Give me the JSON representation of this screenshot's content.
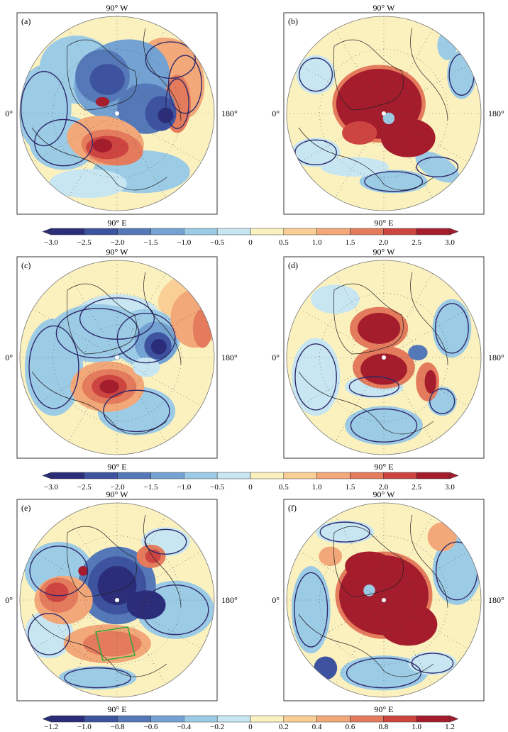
{
  "colors": {
    "palette": [
      "#2b2d7a",
      "#3d53a0",
      "#5579b8",
      "#73a2d3",
      "#9ccbe6",
      "#c7e6f2",
      "#fbf1bf",
      "#f9cf95",
      "#f2a879",
      "#e47b5c",
      "#cd4440",
      "#a51c2c"
    ],
    "frame": "#333333",
    "coast": "#222222",
    "contour": "#2d2a6a",
    "pole": "#ffffff",
    "region_box": "#3aa53a"
  },
  "labels": {
    "top": "90° W",
    "bottom": "90° E",
    "left": "0°",
    "right": "180°"
  },
  "panels": [
    {
      "tag": "(a)",
      "pattern": "a"
    },
    {
      "tag": "(b)",
      "pattern": "b"
    },
    {
      "tag": "(c)",
      "pattern": "c"
    },
    {
      "tag": "(d)",
      "pattern": "d"
    },
    {
      "tag": "(e)",
      "pattern": "e"
    },
    {
      "tag": "(f)",
      "pattern": "f"
    }
  ],
  "colorbars": [
    {
      "ticks": [
        "−3.0",
        "−2.5",
        "−2.0",
        "−1.5",
        "−1.0",
        "−0.5",
        "0",
        "0.5",
        "1.0",
        "1.5",
        "2.0",
        "2.5",
        "3.0"
      ]
    },
    {
      "ticks": [
        "−3.0",
        "−2.5",
        "−2.0",
        "−1.5",
        "−1.0",
        "−0.5",
        "0",
        "0.5",
        "1.0",
        "1.5",
        "2.0",
        "2.5",
        "3.0"
      ]
    },
    {
      "ticks": [
        "−1.2",
        "−1.0",
        "−0.8",
        "−0.6",
        "−0.4",
        "−0.2",
        "0",
        "0.2",
        "0.4",
        "0.6",
        "0.8",
        "1.0",
        "1.2"
      ]
    }
  ]
}
